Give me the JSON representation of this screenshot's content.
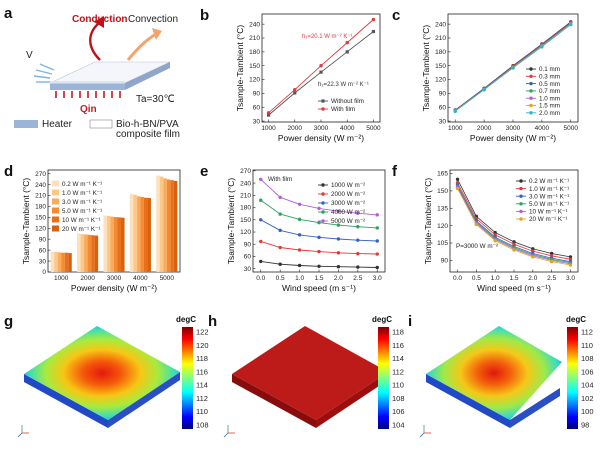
{
  "panels": {
    "a": "a",
    "b": "b",
    "c": "c",
    "d": "d",
    "e": "e",
    "f": "f",
    "g": "g",
    "h": "h",
    "i": "i"
  },
  "schematic": {
    "conduction": "Conduction",
    "convection": "Convection",
    "v_label": "V",
    "ta_label": "Ta=30℃",
    "qin_label": "Qin",
    "legend_heater": "Heater",
    "legend_film_line1": "Bio-h-BN/PVA",
    "legend_film_line2": "composite film",
    "colors": {
      "conduction": "#c0101a",
      "convection": "#f4a36b",
      "heater": "#9bb5d8",
      "arrow": "#c31d24"
    }
  },
  "chart_data": [
    {
      "id": "b",
      "type": "line",
      "xlabel": "Power density (W m⁻²)",
      "ylabel": "Tsample-Tambient (°C)",
      "x": [
        1000,
        2000,
        3000,
        4000,
        5000
      ],
      "xlim": [
        750,
        5250
      ],
      "ylim": [
        28,
        262
      ],
      "xticks": [
        1000,
        2000,
        3000,
        4000,
        5000
      ],
      "yticks": [
        30,
        60,
        90,
        120,
        150,
        180,
        210,
        240
      ],
      "series": [
        {
          "name": "Without film",
          "values": [
            43,
            91,
            136,
            180,
            224
          ],
          "color": "#555555",
          "marker": "square"
        },
        {
          "name": "With film",
          "values": [
            48,
            98,
            150,
            200,
            250
          ],
          "color": "#e5383b",
          "marker": "circle"
        }
      ],
      "annotations": [
        {
          "text": "h₁=20.1 W m⁻² K⁻¹",
          "color": "#e5383b"
        },
        {
          "text": "h₂=22.3 W m⁻² K⁻¹",
          "color": "#333333"
        }
      ],
      "legend": "bottom-right"
    },
    {
      "id": "c",
      "type": "line",
      "xlabel": "Power density (W m⁻²)",
      "ylabel": "Tsample-Tambient (°C)",
      "x": [
        1000,
        2000,
        3000,
        4000,
        5000
      ],
      "xlim": [
        750,
        5250
      ],
      "ylim": [
        28,
        262
      ],
      "xticks": [
        1000,
        2000,
        3000,
        4000,
        5000
      ],
      "yticks": [
        30,
        60,
        90,
        120,
        150,
        180,
        210,
        240
      ],
      "series": [
        {
          "name": "0.1 mm",
          "values": [
            54,
            101,
            150,
            197,
            245
          ],
          "color": "#333333"
        },
        {
          "name": "0.3 mm",
          "values": [
            53,
            100,
            149,
            196,
            244
          ],
          "color": "#e5383b"
        },
        {
          "name": "0.5 mm",
          "values": [
            53,
            100,
            148,
            195,
            243
          ],
          "color": "#3560c6"
        },
        {
          "name": "0.7 mm",
          "values": [
            52,
            99,
            147,
            194,
            242
          ],
          "color": "#2ca25f"
        },
        {
          "name": "1.0 mm",
          "values": [
            52,
            99,
            147,
            193,
            241
          ],
          "color": "#b05fd6"
        },
        {
          "name": "1.5 mm",
          "values": [
            52,
            98,
            146,
            192,
            240
          ],
          "color": "#e0a61c"
        },
        {
          "name": "2.0 mm",
          "values": [
            51,
            98,
            145,
            191,
            239
          ],
          "color": "#2ab7c8"
        }
      ],
      "legend": "bottom-right"
    },
    {
      "id": "d",
      "type": "bar",
      "xlabel": "Power density (W m⁻²)",
      "ylabel": "Tsample-Tambient (°C)",
      "categories": [
        "1000",
        "2000",
        "3000",
        "4000",
        "5000"
      ],
      "ylim": [
        0,
        280
      ],
      "yticks": [
        0,
        30,
        60,
        90,
        120,
        150,
        180,
        210,
        240,
        270
      ],
      "series": [
        {
          "name": "0.2 W m⁻¹ K⁻¹",
          "values": [
            56,
            106,
            155,
            215,
            265
          ],
          "color": "#fde0bd"
        },
        {
          "name": "1.0 W m⁻¹ K⁻¹",
          "values": [
            55,
            104,
            154,
            212,
            262
          ],
          "color": "#fcc88a"
        },
        {
          "name": "3.0 W m⁻¹ K⁻¹",
          "values": [
            54,
            103,
            152,
            208,
            257
          ],
          "color": "#f9ab5c"
        },
        {
          "name": "5.0 W m⁻¹ K⁻¹",
          "values": [
            53,
            102,
            151,
            206,
            254
          ],
          "color": "#f48a32"
        },
        {
          "name": "10 W m⁻¹ K⁻¹",
          "values": [
            53,
            101,
            150,
            204,
            252
          ],
          "color": "#e8701c"
        },
        {
          "name": "20 W m⁻¹ K⁻¹",
          "values": [
            52,
            100,
            149,
            203,
            250
          ],
          "color": "#d6620f"
        }
      ],
      "legend": "top-left"
    },
    {
      "id": "e",
      "type": "line",
      "xlabel": "Wind speed (m s⁻¹)",
      "ylabel": "Tsample-Tambient (°C)",
      "title": "With film",
      "x": [
        0,
        0.5,
        1.0,
        1.5,
        2.0,
        2.5,
        3.0
      ],
      "xlim": [
        -0.2,
        3.2
      ],
      "ylim": [
        22,
        272
      ],
      "xticks": [
        0,
        0.5,
        1.0,
        1.5,
        2.0,
        2.5,
        3.0
      ],
      "xticklabels": [
        "0.0",
        "0.5",
        "1.0",
        "1.5",
        "2.0",
        "2.5",
        "3.0"
      ],
      "yticks": [
        30,
        60,
        90,
        120,
        150,
        180,
        210,
        240,
        270
      ],
      "series": [
        {
          "name": "1000 W m⁻²",
          "values": [
            48,
            41,
            38,
            36,
            35,
            34,
            33
          ],
          "color": "#333333"
        },
        {
          "name": "2000 W m⁻²",
          "values": [
            97,
            82,
            76,
            72,
            69,
            67,
            66
          ],
          "color": "#e5383b"
        },
        {
          "name": "3000 W m⁻²",
          "values": [
            150,
            124,
            113,
            107,
            103,
            100,
            98
          ],
          "color": "#3560c6"
        },
        {
          "name": "4000 W m⁻²",
          "values": [
            198,
            164,
            151,
            143,
            137,
            133,
            130
          ],
          "color": "#2ca25f"
        },
        {
          "name": "5000 W m⁻²",
          "values": [
            249,
            205,
            188,
            178,
            171,
            166,
            162
          ],
          "color": "#b05fd6"
        }
      ],
      "legend": "top-right"
    },
    {
      "id": "f",
      "type": "line",
      "xlabel": "Wind speed (m s⁻¹)",
      "ylabel": "Tsample-Tambient (°C)",
      "annotation": "P=3000 W m⁻²",
      "x": [
        0,
        0.5,
        1.0,
        1.5,
        2.0,
        2.5,
        3.0
      ],
      "xlim": [
        -0.2,
        3.2
      ],
      "ylim": [
        80,
        168
      ],
      "xticks": [
        0,
        0.5,
        1.0,
        1.5,
        2.0,
        2.5,
        3.0
      ],
      "xticklabels": [
        "0.0",
        "0.5",
        "1.0",
        "1.5",
        "2.0",
        "2.5",
        "3.0"
      ],
      "yticks": [
        90,
        105,
        120,
        135,
        150,
        165
      ],
      "series": [
        {
          "name": "0.2 W m⁻¹ K⁻¹",
          "values": [
            160,
            128,
            114,
            106,
            100,
            96,
            93
          ],
          "color": "#333333"
        },
        {
          "name": "1.0 W m⁻¹ K⁻¹",
          "values": [
            157,
            126,
            112,
            104,
            98,
            94,
            91
          ],
          "color": "#e5383b"
        },
        {
          "name": "3.0 W m⁻¹ K⁻¹",
          "values": [
            155,
            124,
            110,
            102,
            96,
            92,
            89
          ],
          "color": "#3560c6"
        },
        {
          "name": "5.0 W m⁻¹ K⁻¹",
          "values": [
            154,
            123,
            109,
            101,
            95,
            91,
            88
          ],
          "color": "#2ca25f"
        },
        {
          "name": "10 W m⁻¹ K⁻¹",
          "values": [
            153,
            122,
            108,
            100,
            94,
            90,
            87
          ],
          "color": "#b05fd6"
        },
        {
          "name": "20 W m⁻¹ K⁻¹",
          "values": [
            152,
            121,
            107,
            99,
            93,
            89,
            86
          ],
          "color": "#e0a61c"
        }
      ],
      "legend": "top-right"
    }
  ],
  "thermal_maps": [
    {
      "id": "g",
      "unit": "degC",
      "ticks": [
        "122",
        "120",
        "118",
        "116",
        "114",
        "112",
        "110",
        "108"
      ],
      "style": "gradient"
    },
    {
      "id": "h",
      "unit": "degC",
      "ticks": [
        "118",
        "116",
        "114",
        "112",
        "110",
        "108",
        "106",
        "104"
      ],
      "style": "uniform"
    },
    {
      "id": "i",
      "unit": "degC",
      "ticks": [
        "112",
        "110",
        "108",
        "106",
        "104",
        "102",
        "100",
        "98"
      ],
      "style": "gradient"
    }
  ]
}
